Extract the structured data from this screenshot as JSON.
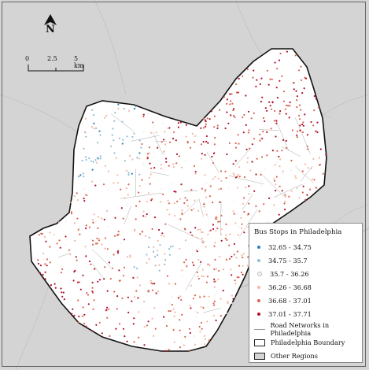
{
  "north_label": "N",
  "scale": {
    "ticks": [
      "0",
      "2.5",
      "5 km"
    ]
  },
  "legend": {
    "title": "Bus Stops in Philadelphia",
    "classes": [
      {
        "label": "32.65 - 34.75",
        "color": "#2e7fb8"
      },
      {
        "label": "34.75 - 35.7",
        "color": "#8fbdd6"
      },
      {
        "label": "35.7 - 36.26",
        "color": "#f2f2f2"
      },
      {
        "label": "36.26 - 36.68",
        "color": "#f0b9a4"
      },
      {
        "label": "36.68 - 37.01",
        "color": "#d96552"
      },
      {
        "label": "37.01 - 37.71",
        "color": "#b0102a"
      }
    ],
    "road_label": "Road Networks in Philadelphia",
    "boundary_label": "Philadelphia Boundary",
    "other_label": "Other Regions"
  },
  "colors": {
    "other_regions": "#d4d4d4",
    "roads": "#a8a8a8",
    "boundary": "#111111"
  }
}
